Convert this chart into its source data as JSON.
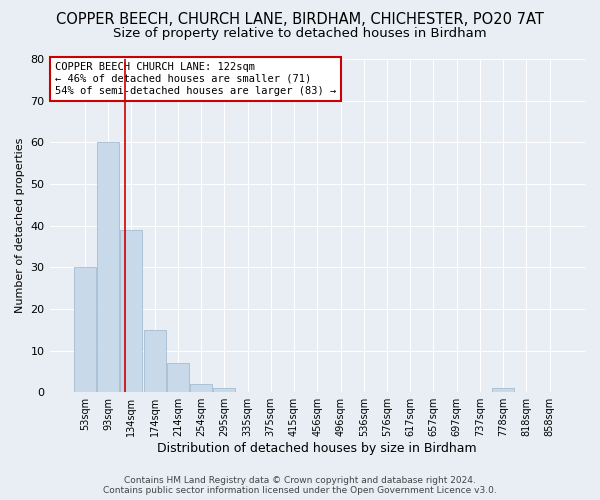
{
  "title": "COPPER BEECH, CHURCH LANE, BIRDHAM, CHICHESTER, PO20 7AT",
  "subtitle": "Size of property relative to detached houses in Birdham",
  "xlabel": "Distribution of detached houses by size in Birdham",
  "ylabel": "Number of detached properties",
  "categories": [
    "53sqm",
    "93sqm",
    "134sqm",
    "174sqm",
    "214sqm",
    "254sqm",
    "295sqm",
    "335sqm",
    "375sqm",
    "415sqm",
    "456sqm",
    "496sqm",
    "536sqm",
    "576sqm",
    "617sqm",
    "657sqm",
    "697sqm",
    "737sqm",
    "778sqm",
    "818sqm",
    "858sqm"
  ],
  "values": [
    30,
    60,
    39,
    15,
    7,
    2,
    1,
    0,
    0,
    0,
    0,
    0,
    0,
    0,
    0,
    0,
    0,
    0,
    1,
    0,
    0
  ],
  "bar_color": "#c8d9ea",
  "bar_edge_color": "#9ab5cc",
  "red_line_x": 1.72,
  "annotation_title": "COPPER BEECH CHURCH LANE: 122sqm",
  "annotation_line1": "← 46% of detached houses are smaller (71)",
  "annotation_line2": "54% of semi-detached houses are larger (83) →",
  "ylim": [
    0,
    80
  ],
  "yticks": [
    0,
    10,
    20,
    30,
    40,
    50,
    60,
    70,
    80
  ],
  "footer_line1": "Contains HM Land Registry data © Crown copyright and database right 2024.",
  "footer_line2": "Contains public sector information licensed under the Open Government Licence v3.0.",
  "bg_color": "#e8eef4",
  "plot_bg_color": "#e8eef4",
  "grid_color": "#ffffff",
  "title_fontsize": 10.5,
  "subtitle_fontsize": 9.5,
  "annotation_box_color": "#ffffff",
  "annotation_box_edge": "#cc0000"
}
